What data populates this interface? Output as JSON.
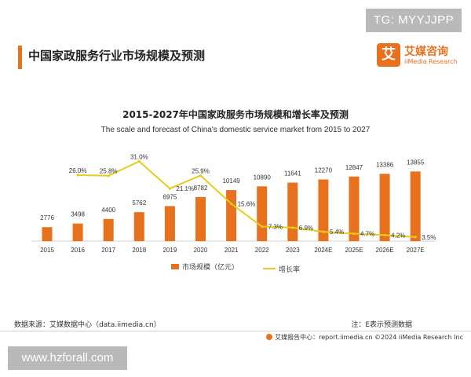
{
  "watermark_top": "TG: MYYJJPP",
  "watermark_bottom": "www.hzforall.com",
  "header": {
    "title": "中国家政服务行业市场规模及预测",
    "logo_mark": "艾",
    "logo_cn": "艾媒咨询",
    "logo_en": "iiMedia Research"
  },
  "footer": {
    "source": "数据来源：艾媒数据中心（data.iimedia.cn）",
    "note": "注：E表示预测数据",
    "report": "艾媒报告中心：report.iimedia.cn    ©2024 iiMedia Research Inc"
  },
  "colors": {
    "bar": "#e8711e",
    "line": "#e6cc1c"
  },
  "chart_data": {
    "type": "bar",
    "title": "2015-2027年中国家政服务市场规模和增长率及预测",
    "subtitle": "The scale and forecast of China's domestic service market from 2015 to 2027",
    "categories": [
      "2015",
      "2016",
      "2017",
      "2018",
      "2019",
      "2020",
      "2021",
      "2022",
      "2023",
      "2024E",
      "2025E",
      "2026E",
      "2027E"
    ],
    "series": [
      {
        "name": "市场规模（亿元）",
        "type": "bar",
        "values": [
          2776,
          3498,
          4400,
          5762,
          6975,
          8782,
          10149,
          10890,
          11641,
          12270,
          12847,
          13386,
          13855
        ],
        "labels": [
          "2776",
          "3498",
          "4400",
          "5762",
          "6975",
          "8782",
          "10149",
          "10890",
          "11641",
          "12270",
          "12847",
          "13386",
          "13855"
        ]
      },
      {
        "name": "增长率",
        "type": "line",
        "values": [
          null,
          26.0,
          25.8,
          31.0,
          21.1,
          25.9,
          15.6,
          7.3,
          6.9,
          5.4,
          4.7,
          4.2,
          3.5
        ],
        "labels": [
          "",
          "26.0%",
          "25.8%",
          "31.0%",
          "21.1%",
          "25.9%",
          "15.6%",
          "7.3%",
          "6.9%",
          "5.4%",
          "4.7%",
          "4.2%",
          "3.5%"
        ]
      }
    ],
    "legend_position": "bottom",
    "grid": false
  }
}
